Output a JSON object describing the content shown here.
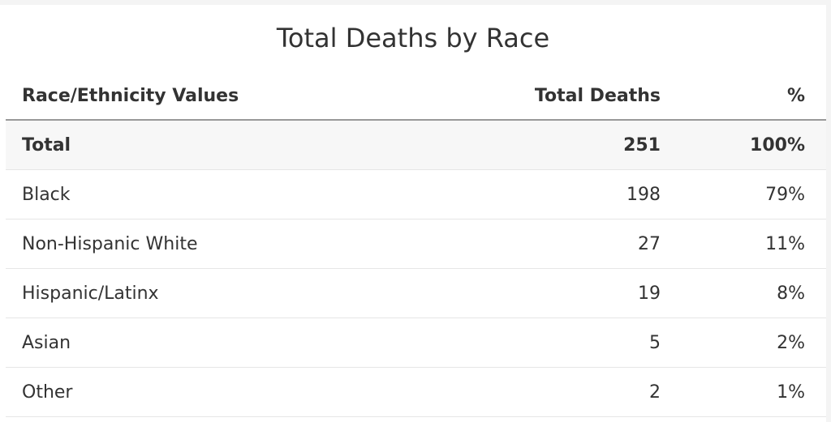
{
  "title": "Total Deaths by Race",
  "table": {
    "header": [
      "Race/Ethnicity Values",
      "Total Deaths",
      "%"
    ],
    "rows": [
      [
        "Total",
        "251",
        "100%"
      ],
      [
        "Black",
        "198",
        "79%"
      ],
      [
        "Non-Hispanic White",
        "27",
        "11%"
      ],
      [
        "Hispanic/Latinx",
        "19",
        "8%"
      ],
      [
        "Asian",
        "5",
        "2%"
      ],
      [
        "Other",
        "2",
        "1%"
      ]
    ]
  }
}
